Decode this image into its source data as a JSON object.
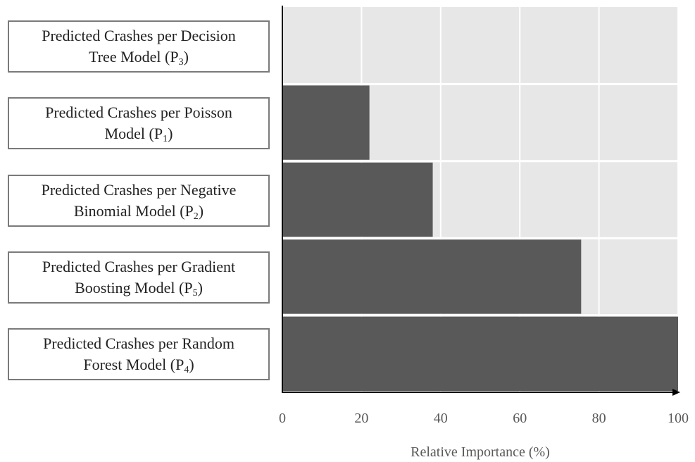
{
  "chart_data": {
    "type": "bar",
    "orientation": "horizontal",
    "title": "",
    "xlabel": "Relative Importance (%)",
    "ylabel": "",
    "xlim": [
      0,
      100
    ],
    "xticks": [
      0,
      20,
      40,
      60,
      80,
      100
    ],
    "grid": true,
    "categories": [
      {
        "main": "Predicted Crashes per Decision",
        "line2": "Tree Model (P",
        "sub": "3",
        "tail": ")"
      },
      {
        "main": "Predicted Crashes per Poisson",
        "line2": "Model (P",
        "sub": "1",
        "tail": ")"
      },
      {
        "main": "Predicted Crashes per Negative",
        "line2": "Binomial Model (P",
        "sub": "2",
        "tail": ")"
      },
      {
        "main": "Predicted Crashes per Gradient",
        "line2": "Boosting Model  (P",
        "sub": "5",
        "tail": ")"
      },
      {
        "main": "Predicted Crashes per Random",
        "line2": "Forest Model (P",
        "sub": "4",
        "tail": ")"
      }
    ],
    "values": [
      0,
      22,
      38,
      75.5,
      100
    ],
    "colors": {
      "bar": "#595959",
      "plot_bg": "#e7e7e7",
      "grid": "#ffffff",
      "axis": "#000000"
    }
  }
}
